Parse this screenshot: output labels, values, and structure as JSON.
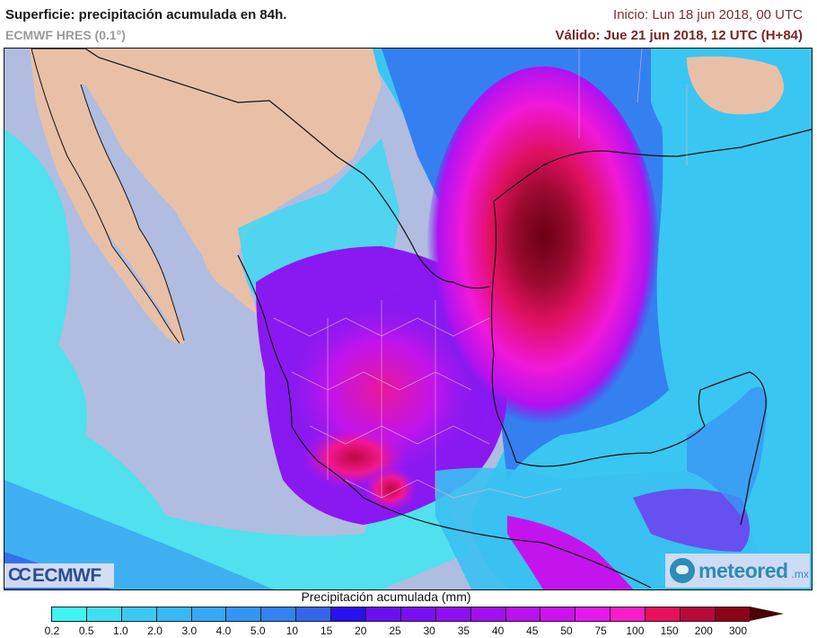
{
  "header": {
    "title": "Superficie: precipitación acumulada en 84h.",
    "model": "ECMWF HRES (0.1°)",
    "init": "Inicio: Lun 18 jun 2018, 00 UTC",
    "valid": "Válido: Jue 21 jun 2018, 12 UTC (H+84)"
  },
  "map": {
    "region": "Mexico, southern USA, Gulf of Mexico, Central America",
    "land_color": "#e8c0a8",
    "ocean_color": "#b0bde0",
    "border_color": "#111111",
    "state_border_color": "#e0b8c8"
  },
  "logos": {
    "ecmwf": "ECMWF",
    "meteored": "meteored",
    "meteored_tld": ".mx"
  },
  "legend": {
    "title": "Precipitación acumulada (mm)",
    "ticks": [
      "0.2",
      "0.5",
      "1.0",
      "2.0",
      "3.0",
      "4.0",
      "5.0",
      "10",
      "15",
      "20",
      "25",
      "30",
      "35",
      "40",
      "45",
      "50",
      "75",
      "100",
      "150",
      "200",
      "300"
    ],
    "colors": [
      "#40f4f4",
      "#40def2",
      "#3cc8f4",
      "#38b8f6",
      "#36a8f6",
      "#3496f4",
      "#3282f2",
      "#3466ec",
      "#2a10ee",
      "#6a10f0",
      "#7a10f2",
      "#8e10f2",
      "#a010f0",
      "#b812ee",
      "#cc12ee",
      "#e618ee",
      "#fa1cc8",
      "#e8105a",
      "#b80a3a",
      "#8a0418"
    ],
    "overflow_color": "#4a0008"
  }
}
